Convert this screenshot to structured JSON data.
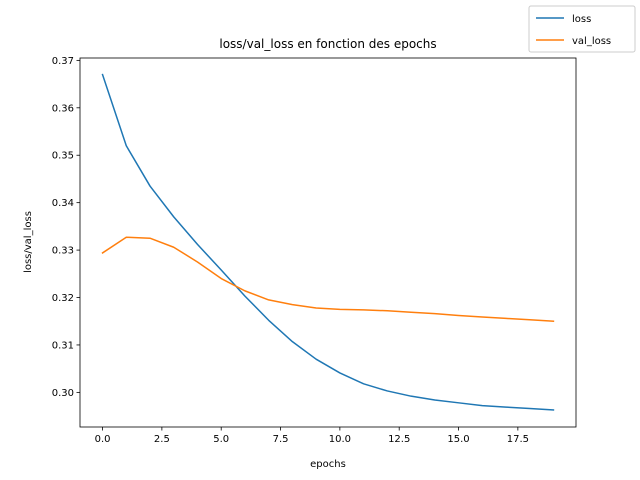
{
  "chart_data": {
    "type": "line",
    "title": "loss/val_loss en fonction des epochs",
    "xlabel": "epochs",
    "ylabel": "loss/val_loss",
    "xlim": [
      -0.95,
      19.95
    ],
    "ylim": [
      0.2927,
      0.3705
    ],
    "x_ticks": [
      0.0,
      2.5,
      5.0,
      7.5,
      10.0,
      12.5,
      15.0,
      17.5
    ],
    "x_tick_labels": [
      "0.0",
      "2.5",
      "5.0",
      "7.5",
      "10.0",
      "12.5",
      "15.0",
      "17.5"
    ],
    "y_ticks": [
      0.3,
      0.31,
      0.32,
      0.33,
      0.34,
      0.35,
      0.36,
      0.37
    ],
    "y_tick_labels": [
      "0.30",
      "0.31",
      "0.32",
      "0.33",
      "0.34",
      "0.35",
      "0.36",
      "0.37"
    ],
    "grid": false,
    "legend_position": "top-right",
    "x": [
      0,
      1,
      2,
      3,
      4,
      5,
      6,
      7,
      8,
      9,
      10,
      11,
      12,
      13,
      14,
      15,
      16,
      17,
      18,
      19
    ],
    "series": [
      {
        "name": "loss",
        "color": "#1f77b4",
        "values": [
          0.367,
          0.352,
          0.3435,
          0.337,
          0.3312,
          0.3258,
          0.3203,
          0.3152,
          0.3107,
          0.307,
          0.3041,
          0.3018,
          0.3003,
          0.2992,
          0.2984,
          0.2978,
          0.2972,
          0.2969,
          0.2966,
          0.2963
        ]
      },
      {
        "name": "val_loss",
        "color": "#ff7f0e",
        "values": [
          0.3294,
          0.3327,
          0.3325,
          0.3306,
          0.3275,
          0.324,
          0.3214,
          0.3195,
          0.3185,
          0.3178,
          0.3175,
          0.3174,
          0.3172,
          0.3169,
          0.3166,
          0.3162,
          0.3159,
          0.3156,
          0.3153,
          0.315
        ]
      }
    ]
  }
}
